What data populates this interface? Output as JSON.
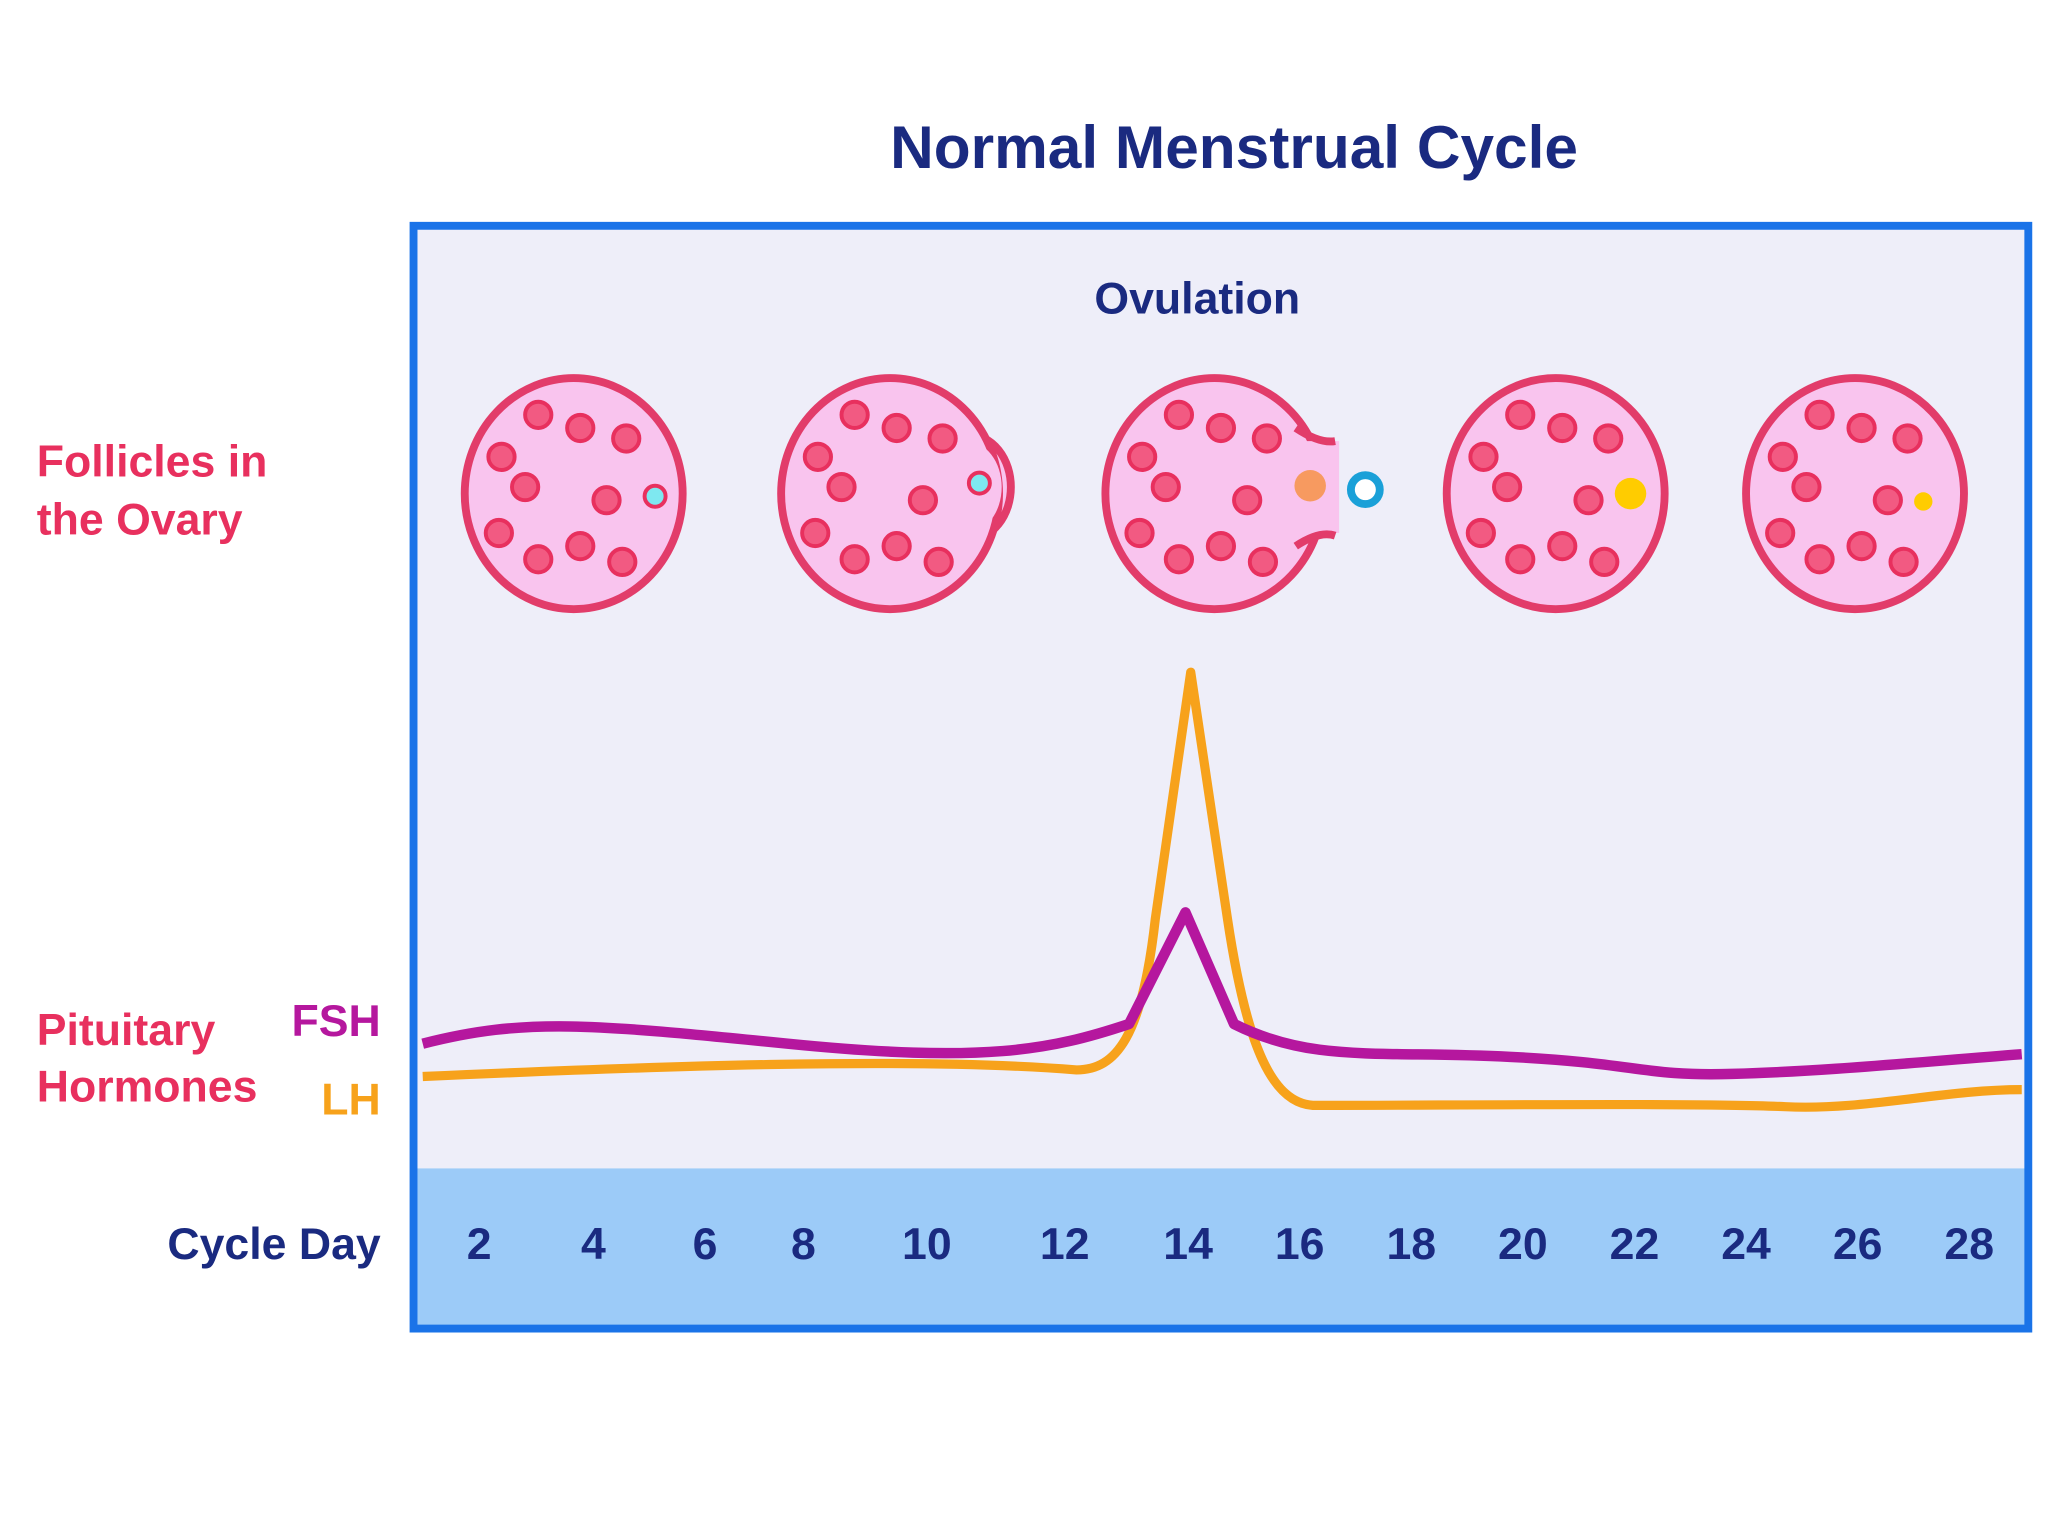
{
  "title": "Normal Menstrual Cycle",
  "annotation": "Ovulation",
  "follicles_label": [
    "Follicles in",
    "the Ovary"
  ],
  "hormones_label": [
    "Pituitary",
    "Hormones"
  ],
  "fsh": "FSH",
  "lh": "LH",
  "cycle_day": "Cycle Day",
  "days": [
    2,
    4,
    6,
    8,
    10,
    12,
    14,
    16,
    18,
    20,
    22,
    24,
    26,
    28
  ]
}
